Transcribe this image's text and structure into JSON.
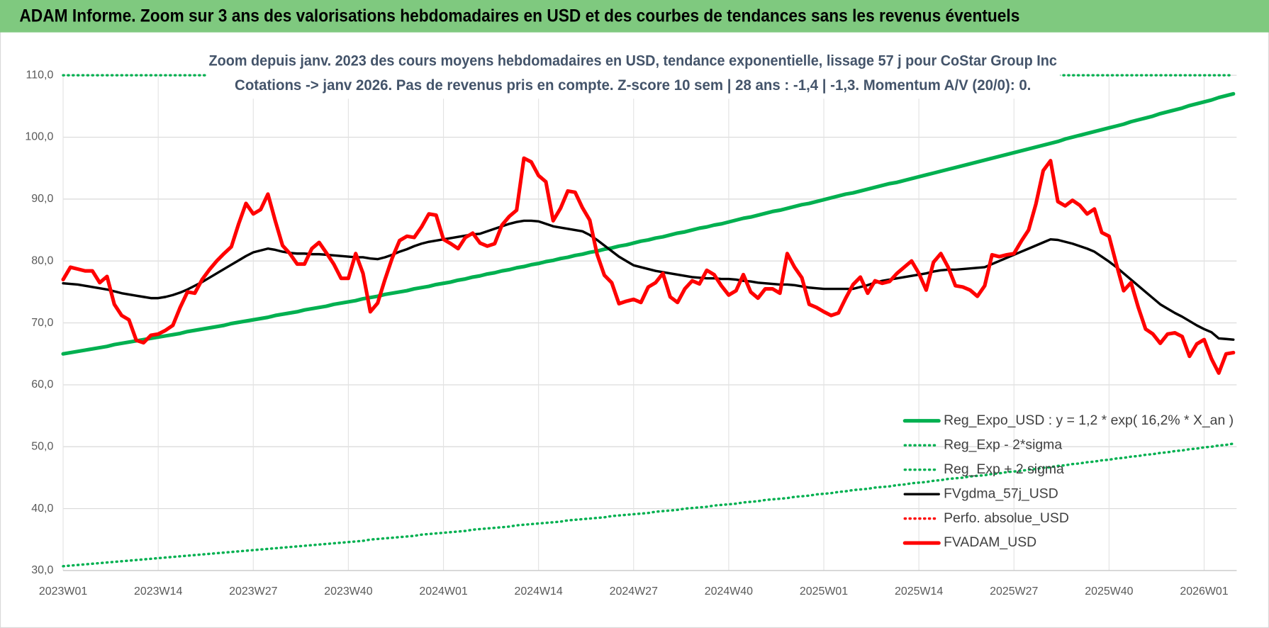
{
  "chart_data": {
    "type": "line",
    "title": "ADAM Informe. Zoom sur 3 ans des valorisations hebdomadaires en USD et des courbes de tendances sans les revenus éventuels",
    "subtitle": [
      "Zoom depuis janv. 2023 des cours moyens hebdomadaires en USD, tendance exponentielle, lissage 57 j pour CoStar Group Inc",
      "Cotations -> janv 2026. Pas de revenus pris en compte. Z-score 10 sem | 28 ans : -1,4 | -1,3. Momentum A/V (20/0): 0."
    ],
    "categories": [
      "2023W01",
      null,
      null,
      null,
      null,
      null,
      null,
      null,
      null,
      null,
      null,
      null,
      null,
      "2023W14",
      null,
      null,
      null,
      null,
      null,
      null,
      null,
      null,
      null,
      null,
      null,
      null,
      "2023W27",
      null,
      null,
      null,
      null,
      null,
      null,
      null,
      null,
      null,
      null,
      null,
      null,
      "2023W40",
      null,
      null,
      null,
      null,
      null,
      null,
      null,
      null,
      null,
      null,
      null,
      null,
      "2024W01",
      null,
      null,
      null,
      null,
      null,
      null,
      null,
      null,
      null,
      null,
      null,
      null,
      "2024W14",
      null,
      null,
      null,
      null,
      null,
      null,
      null,
      null,
      null,
      null,
      null,
      null,
      "2024W27",
      null,
      null,
      null,
      null,
      null,
      null,
      null,
      null,
      null,
      null,
      null,
      null,
      "2024W40",
      null,
      null,
      null,
      null,
      null,
      null,
      null,
      null,
      null,
      null,
      null,
      null,
      "2025W01",
      null,
      null,
      null,
      null,
      null,
      null,
      null,
      null,
      null,
      null,
      null,
      null,
      "2025W14",
      null,
      null,
      null,
      null,
      null,
      null,
      null,
      null,
      null,
      null,
      null,
      null,
      "2025W27",
      null,
      null,
      null,
      null,
      null,
      null,
      null,
      null,
      null,
      null,
      null,
      null,
      "2025W40",
      null,
      null,
      null,
      null,
      null,
      null,
      null,
      null,
      null,
      null,
      null,
      null,
      "2026W01",
      null,
      null,
      null,
      null
    ],
    "ylim": [
      30,
      110
    ],
    "yticks": [
      {
        "value": 30,
        "label": "30,0"
      },
      {
        "value": 40,
        "label": "40,0"
      },
      {
        "value": 50,
        "label": "50,0"
      },
      {
        "value": 60,
        "label": "60,0"
      },
      {
        "value": 70,
        "label": "70,0"
      },
      {
        "value": 80,
        "label": "80,0"
      },
      {
        "value": 90,
        "label": "90,0"
      },
      {
        "value": 100,
        "label": "100,0"
      },
      {
        "value": 110,
        "label": "110,0"
      }
    ],
    "grid": true,
    "legend": "lower right",
    "series": [
      {
        "name": "Reg_Expo_USD : y = 1,2 * exp( 16,2% *  X_an )",
        "color": "#00b050",
        "style": "thick",
        "values": [
          65.0,
          65.2,
          65.4,
          65.6,
          65.8,
          66.0,
          66.2,
          66.5,
          66.7,
          66.9,
          67.1,
          67.3,
          67.5,
          67.7,
          67.9,
          68.1,
          68.3,
          68.6,
          68.8,
          69.0,
          69.2,
          69.4,
          69.6,
          69.9,
          70.1,
          70.3,
          70.5,
          70.7,
          70.9,
          71.2,
          71.4,
          71.6,
          71.8,
          72.1,
          72.3,
          72.5,
          72.7,
          73.0,
          73.2,
          73.4,
          73.6,
          73.9,
          74.1,
          74.3,
          74.6,
          74.8,
          75.0,
          75.2,
          75.5,
          75.7,
          75.9,
          76.2,
          76.4,
          76.6,
          76.9,
          77.1,
          77.4,
          77.6,
          77.9,
          78.1,
          78.4,
          78.6,
          78.9,
          79.1,
          79.4,
          79.6,
          79.9,
          80.1,
          80.4,
          80.6,
          80.9,
          81.1,
          81.4,
          81.6,
          81.9,
          82.1,
          82.4,
          82.6,
          82.9,
          83.2,
          83.4,
          83.7,
          83.9,
          84.2,
          84.5,
          84.7,
          85.0,
          85.3,
          85.5,
          85.8,
          86.0,
          86.3,
          86.6,
          86.9,
          87.1,
          87.4,
          87.7,
          88.0,
          88.2,
          88.5,
          88.8,
          89.1,
          89.3,
          89.6,
          89.9,
          90.2,
          90.5,
          90.8,
          91.0,
          91.3,
          91.6,
          91.9,
          92.2,
          92.5,
          92.7,
          93.0,
          93.3,
          93.6,
          93.9,
          94.2,
          94.5,
          94.8,
          95.1,
          95.4,
          95.7,
          96.0,
          96.3,
          96.6,
          96.9,
          97.2,
          97.5,
          97.8,
          98.1,
          98.4,
          98.7,
          99.0,
          99.3,
          99.7,
          100.0,
          100.3,
          100.6,
          100.9,
          101.2,
          101.5,
          101.8,
          102.1,
          102.5,
          102.8,
          103.1,
          103.4,
          103.8,
          104.1,
          104.4,
          104.7,
          105.1,
          105.4,
          105.7,
          106.0,
          106.4,
          106.7,
          107.0
        ]
      },
      {
        "name": "Reg_Exp - 2*sigma",
        "color": "#00b050",
        "style": "dotted",
        "values": [
          30.7,
          30.8,
          30.9,
          31.0,
          31.1,
          31.2,
          31.3,
          31.4,
          31.5,
          31.6,
          31.7,
          31.8,
          31.9,
          32.0,
          32.1,
          32.2,
          32.3,
          32.4,
          32.5,
          32.6,
          32.7,
          32.8,
          32.9,
          33.0,
          33.1,
          33.2,
          33.3,
          33.4,
          33.5,
          33.6,
          33.7,
          33.8,
          33.9,
          34.0,
          34.1,
          34.2,
          34.3,
          34.4,
          34.5,
          34.6,
          34.7,
          34.8,
          35.0,
          35.1,
          35.2,
          35.3,
          35.4,
          35.5,
          35.6,
          35.8,
          35.9,
          36.0,
          36.1,
          36.2,
          36.3,
          36.4,
          36.6,
          36.7,
          36.8,
          36.9,
          37.0,
          37.1,
          37.3,
          37.4,
          37.5,
          37.6,
          37.7,
          37.8,
          37.9,
          38.1,
          38.2,
          38.3,
          38.4,
          38.5,
          38.6,
          38.8,
          38.9,
          39.0,
          39.1,
          39.2,
          39.3,
          39.5,
          39.6,
          39.7,
          39.8,
          40.0,
          40.1,
          40.2,
          40.3,
          40.5,
          40.6,
          40.7,
          40.8,
          41.0,
          41.1,
          41.2,
          41.4,
          41.5,
          41.6,
          41.7,
          41.9,
          42.0,
          42.1,
          42.3,
          42.4,
          42.5,
          42.7,
          42.8,
          43.0,
          43.1,
          43.2,
          43.4,
          43.5,
          43.6,
          43.8,
          43.9,
          44.1,
          44.2,
          44.3,
          44.5,
          44.6,
          44.8,
          44.9,
          45.0,
          45.2,
          45.3,
          45.4,
          45.6,
          45.7,
          45.9,
          46.0,
          46.1,
          46.3,
          46.4,
          46.6,
          46.7,
          46.9,
          47.0,
          47.2,
          47.3,
          47.5,
          47.6,
          47.8,
          47.9,
          48.1,
          48.2,
          48.4,
          48.5,
          48.7,
          48.8,
          49.0,
          49.1,
          49.3,
          49.4,
          49.6,
          49.7,
          49.9,
          50.0,
          50.2,
          50.3,
          50.5
        ]
      },
      {
        "name": "Reg_Exp + 2 sigma",
        "color": "#00b050",
        "style": "dotted",
        "values": [
          110,
          110,
          110,
          110,
          110,
          110,
          110,
          110,
          110,
          110,
          110,
          110,
          110,
          110,
          110,
          110,
          110,
          110,
          110,
          110,
          110,
          110,
          110,
          110,
          110,
          110,
          110,
          110,
          110,
          110,
          110,
          110,
          110,
          110,
          110,
          110,
          110,
          110,
          110,
          110,
          110,
          110,
          110,
          110,
          110,
          110,
          110,
          110,
          110,
          110,
          110,
          110,
          110,
          110,
          110,
          110,
          110,
          110,
          110,
          110,
          110,
          110,
          110,
          110,
          110,
          110,
          110,
          110,
          110,
          110,
          110,
          110,
          110,
          110,
          110,
          110,
          110,
          110,
          110,
          110,
          110,
          110,
          110,
          110,
          110,
          110,
          110,
          110,
          110,
          110,
          110,
          110,
          110,
          110,
          110,
          110,
          110,
          110,
          110,
          110,
          110,
          110,
          110,
          110,
          110,
          110,
          110,
          110,
          110,
          110,
          110,
          110,
          110,
          110,
          110,
          110,
          110,
          110,
          110,
          110,
          110,
          110,
          110,
          110,
          110,
          110,
          110,
          110,
          110,
          110,
          110,
          110,
          110,
          110,
          110,
          110,
          110,
          110,
          110,
          110,
          110,
          110,
          110,
          110,
          110,
          110,
          110,
          110,
          110,
          110,
          110,
          110,
          110,
          110,
          110,
          110,
          110,
          110,
          110,
          110,
          110
        ]
      },
      {
        "name": "FVgdma_57j_USD",
        "color": "#000000",
        "style": "solid",
        "values": [
          76.4,
          76.3,
          76.2,
          76.0,
          75.8,
          75.6,
          75.4,
          75.1,
          74.8,
          74.6,
          74.4,
          74.2,
          74.0,
          74.0,
          74.2,
          74.5,
          74.9,
          75.4,
          76.0,
          76.6,
          77.3,
          78.0,
          78.7,
          79.4,
          80.1,
          80.8,
          81.4,
          81.7,
          82.0,
          81.8,
          81.5,
          81.3,
          81.2,
          81.2,
          81.1,
          81.1,
          81.0,
          80.9,
          80.8,
          80.7,
          80.6,
          80.6,
          80.4,
          80.3,
          80.6,
          81.0,
          81.5,
          81.9,
          82.4,
          82.8,
          83.1,
          83.3,
          83.5,
          83.7,
          83.9,
          84.1,
          84.3,
          84.4,
          84.8,
          85.2,
          85.6,
          86.0,
          86.3,
          86.5,
          86.5,
          86.4,
          86.0,
          85.6,
          85.4,
          85.2,
          85.0,
          84.8,
          84.2,
          83.4,
          82.5,
          81.6,
          80.7,
          80.0,
          79.3,
          79.0,
          78.7,
          78.4,
          78.2,
          78.0,
          77.8,
          77.6,
          77.4,
          77.3,
          77.2,
          77.2,
          77.1,
          77.1,
          77.0,
          76.8,
          76.7,
          76.5,
          76.4,
          76.3,
          76.2,
          76.2,
          76.1,
          75.9,
          75.7,
          75.6,
          75.5,
          75.5,
          75.5,
          75.5,
          75.5,
          75.8,
          76.1,
          76.5,
          76.8,
          77.0,
          77.2,
          77.4,
          77.6,
          77.8,
          78.0,
          78.3,
          78.5,
          78.6,
          78.6,
          78.7,
          78.8,
          78.9,
          79.0,
          79.5,
          80.0,
          80.5,
          81.0,
          81.5,
          82.0,
          82.5,
          83.0,
          83.5,
          83.4,
          83.1,
          82.8,
          82.4,
          82.0,
          81.5,
          80.7,
          79.9,
          79.0,
          78.0,
          77.0,
          76.0,
          75.0,
          74.0,
          73.0,
          72.3,
          71.6,
          71.0,
          70.3,
          69.6,
          69.0,
          68.5,
          67.5,
          67.4,
          67.3
        ]
      },
      {
        "name": "Perfo. absolue_USD",
        "color": "#ff0000",
        "style": "dotted"
      },
      {
        "name": "FVADAM_USD",
        "color": "#ff0000",
        "style": "thick",
        "values": [
          77,
          79,
          78.7,
          78.4,
          78.4,
          76.5,
          77.5,
          73,
          71.2,
          70.5,
          67.2,
          66.8,
          68,
          68.2,
          68.8,
          69.6,
          72.5,
          75,
          74.8,
          77,
          78.6,
          80,
          81.2,
          82.3,
          86,
          89.3,
          87.6,
          88.3,
          90.8,
          86.5,
          82.5,
          81.2,
          79.5,
          79.5,
          82,
          83,
          81.3,
          79.5,
          77.2,
          77.2,
          81.2,
          78,
          71.8,
          73.2,
          77,
          80.5,
          83.3,
          84,
          83.8,
          85.5,
          87.6,
          87.4,
          83.5,
          82.8,
          82,
          83.8,
          84.5,
          82.9,
          82.4,
          82.8,
          85.8,
          87.2,
          88.2,
          96.6,
          96,
          93.8,
          92.8,
          86.5,
          88.5,
          91.3,
          91.1,
          88.6,
          86.6,
          81.1,
          77.7,
          76.5,
          73.1,
          73.5,
          73.8,
          73.3,
          75.8,
          76.5,
          78,
          74.2,
          73.3,
          75.5,
          76.8,
          76.3,
          78.5,
          77.8,
          76,
          74.5,
          75.2,
          77.8,
          75,
          74,
          75.5,
          75.5,
          74.8,
          81.2,
          79,
          77.3,
          73,
          72.5,
          71.8,
          71.2,
          71.6,
          74,
          76.2,
          77.4,
          74.8,
          76.8,
          76.4,
          76.7,
          78,
          79,
          80,
          78,
          75.3,
          79.8,
          81.2,
          79,
          76,
          75.8,
          75.3,
          74.3,
          76,
          81,
          80.7,
          81,
          81.2,
          83.2,
          85,
          89.2,
          94.6,
          96.2,
          89.6,
          88.9,
          89.8,
          89,
          87.6,
          88.4,
          84.6,
          84,
          79.5,
          75.2,
          76.5,
          72.5,
          69,
          68.2,
          66.7,
          68.2,
          68.4,
          67.8,
          64.6,
          66.6,
          67.3,
          64.2,
          61.9,
          65,
          65.2
        ]
      }
    ]
  }
}
